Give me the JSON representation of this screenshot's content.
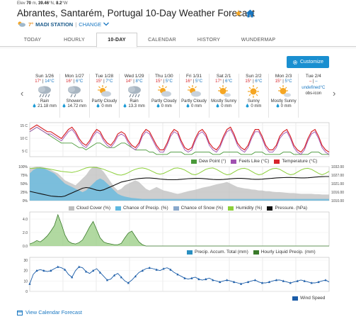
{
  "header": {
    "elev_label": "Elev",
    "elev_value": "70",
    "elev_unit": "m,",
    "lat": "39.46",
    "lat_unit": "°N,",
    "lon": "8.2",
    "lon_unit": "°W",
    "title": "Abrantes, Santarém, Portugal 10-Day Weather Forecast",
    "temp": "7°",
    "station": "MADI STATION",
    "separator": "|",
    "change": "CHANGE"
  },
  "tabs": [
    {
      "label": "TODAY"
    },
    {
      "label": "HOURLY"
    },
    {
      "label": "10-DAY"
    },
    {
      "label": "CALENDAR"
    },
    {
      "label": "HISTORY"
    },
    {
      "label": "WUNDERMAP"
    }
  ],
  "customize_label": "Customize",
  "days": [
    {
      "name": "Sun 1/26",
      "hi": "17°",
      "lo": "14°C",
      "icon": "rain-icon",
      "cond": "Rain",
      "precip": "21.18 mm"
    },
    {
      "name": "Mon 1/27",
      "hi": "16°",
      "lo": "6°C",
      "icon": "showers-icon",
      "cond": "Showers",
      "precip": "14.72 mm"
    },
    {
      "name": "Tue 1/28",
      "hi": "15°",
      "lo": "7°C",
      "icon": "partly-cloudy-icon",
      "cond": "Partly Cloudy",
      "precip": "0 mm"
    },
    {
      "name": "Wed 1/29",
      "hi": "14°",
      "lo": "8°C",
      "icon": "rain-icon",
      "cond": "Rain",
      "precip": "13.3 mm"
    },
    {
      "name": "Thu 1/30",
      "hi": "15°",
      "lo": "5°C",
      "icon": "partly-cloudy-icon",
      "cond": "Partly Cloudy",
      "precip": "0 mm"
    },
    {
      "name": "Fri 1/31",
      "hi": "16°",
      "lo": "5°C",
      "icon": "partly-cloudy-icon",
      "cond": "Partly Cloudy",
      "precip": "0 mm"
    },
    {
      "name": "Sat 2/1",
      "hi": "17°",
      "lo": "6°C",
      "icon": "mostly-sunny-icon",
      "cond": "Mostly Sunny",
      "precip": "0 mm"
    },
    {
      "name": "Sun 2/2",
      "hi": "15°",
      "lo": "6°C",
      "icon": "sunny-icon",
      "cond": "Sunny",
      "precip": "0 mm"
    },
    {
      "name": "Mon 2/3",
      "hi": "15°",
      "lo": "5°C",
      "icon": "mostly-sunny-icon",
      "cond": "Mostly Sunny",
      "precip": "0 mm"
    },
    {
      "name": "Tue 2/4",
      "hi": "–",
      "lo": "–",
      "icon": "",
      "cond": "undefined°C",
      "precip": "obs-icon"
    }
  ],
  "chart_data": [
    {
      "type": "line",
      "name": "temperature",
      "y_ticks": [
        "15 C",
        "10 C",
        "5 C"
      ],
      "ylim": [
        3,
        18
      ],
      "series": [
        {
          "name": "Temperature (°C)",
          "color": "#d7262c",
          "values": [
            15,
            16,
            17,
            16,
            15,
            14,
            14,
            13,
            12,
            11,
            13,
            15,
            16,
            14,
            11,
            9,
            8,
            10,
            13,
            15,
            14,
            11,
            9,
            8,
            10,
            13,
            14,
            13,
            10,
            8,
            7,
            9,
            13,
            15,
            14,
            11,
            8,
            6,
            6,
            9,
            13,
            15,
            14,
            10,
            7,
            6,
            7,
            11,
            14,
            15,
            13,
            9,
            7,
            6,
            8,
            12,
            15,
            16,
            13,
            9,
            7,
            6,
            8,
            12,
            15,
            15,
            12,
            8,
            6,
            6,
            8,
            12,
            14,
            15,
            12,
            8,
            6,
            5,
            7,
            11,
            14,
            15,
            12,
            8,
            6,
            5
          ]
        },
        {
          "name": "Feels Like (°C)",
          "color": "#a050b0",
          "values": [
            14,
            15,
            16,
            15,
            14,
            13,
            13,
            12,
            11,
            10,
            12,
            14,
            15,
            13,
            10,
            8,
            7,
            9,
            12,
            14,
            13,
            10,
            8,
            7,
            9,
            12,
            13,
            12,
            9,
            7,
            6,
            8,
            12,
            14,
            13,
            10,
            7,
            5,
            5,
            8,
            12,
            14,
            13,
            9,
            6,
            5,
            6,
            10,
            13,
            14,
            12,
            8,
            6,
            5,
            7,
            11,
            14,
            15,
            12,
            8,
            6,
            5,
            7,
            11,
            14,
            14,
            11,
            7,
            5,
            5,
            7,
            11,
            13,
            14,
            11,
            7,
            5,
            4,
            6,
            10,
            13,
            14,
            11,
            7,
            5,
            4
          ]
        },
        {
          "name": "Dew Point (°)",
          "color": "#4a9a3a",
          "values": [
            14,
            15,
            16,
            15,
            14,
            13,
            12,
            11,
            10,
            9,
            9,
            9,
            9,
            8,
            7,
            7,
            6,
            7,
            8,
            9,
            9,
            8,
            7,
            7,
            7,
            8,
            9,
            9,
            8,
            7,
            6,
            6,
            6,
            6,
            5,
            5,
            4,
            4,
            4,
            4,
            5,
            5,
            5,
            5,
            4,
            4,
            4,
            5,
            5,
            5,
            5,
            5,
            4,
            4,
            4,
            5,
            5,
            5,
            5,
            5,
            4,
            4,
            4,
            4,
            5,
            5,
            5,
            4,
            4,
            4,
            4,
            4,
            5,
            5,
            5,
            4,
            4,
            4,
            4,
            4,
            5,
            5,
            5,
            4,
            4,
            4
          ]
        }
      ]
    },
    {
      "type": "area",
      "name": "atmosphere",
      "y_ticks": [
        "100%",
        "75%",
        "50%",
        "25%",
        "0%"
      ],
      "y2_ticks": [
        "1032.00",
        "1027.00",
        "1021.00",
        "1016.00",
        "1010.00"
      ],
      "ylim": [
        0,
        100
      ],
      "y2lim": [
        1010,
        1032
      ],
      "series": [
        {
          "name": "Cloud Cover (%)",
          "color": "#bdbdbd",
          "values": [
            95,
            98,
            100,
            100,
            98,
            95,
            90,
            85,
            80,
            70,
            60,
            55,
            50,
            45,
            55,
            65,
            75,
            90,
            100,
            100,
            95,
            85,
            70,
            55,
            40,
            30,
            35,
            45,
            50,
            55,
            60,
            55,
            45,
            35,
            30,
            35,
            40,
            35,
            30,
            28,
            25,
            22,
            20,
            22,
            25,
            28,
            30,
            32,
            35,
            38,
            40,
            42,
            45,
            48,
            50,
            52,
            55,
            50,
            45,
            40,
            38,
            36,
            35,
            33,
            32,
            30,
            30,
            28,
            28,
            26,
            25,
            25,
            24,
            23,
            22,
            22,
            21,
            20,
            20,
            20,
            20,
            19,
            19,
            18,
            18,
            18
          ]
        },
        {
          "name": "Chance of Precip. (%)",
          "color": "#5fb8e0",
          "values": [
            80,
            90,
            95,
            98,
            95,
            90,
            85,
            80,
            70,
            60,
            50,
            45,
            40,
            35,
            30,
            25,
            30,
            40,
            50,
            60,
            65,
            60,
            50,
            40,
            30,
            20,
            15,
            12,
            10,
            8,
            7,
            6,
            5,
            5,
            5,
            5,
            5,
            5,
            5,
            5,
            5,
            5,
            5,
            5,
            5,
            5,
            5,
            5,
            5,
            5,
            5,
            5,
            5,
            5,
            5,
            5,
            5,
            5,
            5,
            5,
            5,
            5,
            5,
            5,
            5,
            5,
            5,
            5,
            5,
            5,
            5,
            5,
            5,
            5,
            5,
            5,
            5,
            5,
            5,
            5,
            5,
            5,
            5,
            5,
            5,
            5
          ]
        },
        {
          "name": "Chance of Snow (%)",
          "color": "#8aa8cc",
          "values": []
        },
        {
          "name": "Humidity (%)",
          "color": "#8ccf3a",
          "values": [
            95,
            95,
            96,
            96,
            95,
            94,
            92,
            90,
            88,
            86,
            85,
            84,
            83,
            85,
            88,
            92,
            96,
            98,
            98,
            97,
            95,
            92,
            88,
            84,
            80,
            76,
            75,
            78,
            82,
            88,
            92,
            95,
            96,
            94,
            90,
            85,
            80,
            78,
            80,
            85,
            90,
            95,
            96,
            94,
            90,
            84,
            78,
            76,
            80,
            86,
            92,
            95,
            96,
            92,
            86,
            80,
            76,
            78,
            84,
            90,
            94,
            95,
            92,
            86,
            80,
            76,
            78,
            84,
            90,
            94,
            95,
            92,
            86,
            80,
            76,
            78,
            84,
            90,
            94,
            95,
            92,
            86,
            80,
            76,
            80,
            86
          ]
        },
        {
          "name": "Pressure. (hPa)",
          "color": "#111111",
          "values": [
            1016,
            1015.5,
            1015,
            1014.5,
            1014,
            1013.5,
            1013,
            1012.8,
            1012.6,
            1012.5,
            1013,
            1014,
            1015,
            1016,
            1017,
            1018,
            1018.5,
            1018.2,
            1017.5,
            1016.8,
            1016.5,
            1017,
            1018,
            1019,
            1020,
            1021,
            1022,
            1022.5,
            1023,
            1023.5,
            1024,
            1024.3,
            1024.5,
            1024.6,
            1024.6,
            1024.5,
            1024.3,
            1024,
            1023.8,
            1023.6,
            1023.5,
            1023.5,
            1023.6,
            1023.8,
            1024,
            1024.2,
            1024.3,
            1024.4,
            1024.4,
            1024.3,
            1024.1,
            1023.9,
            1023.7,
            1023.6,
            1023.6,
            1023.7,
            1023.9,
            1024.1,
            1024.3,
            1024.4,
            1024.4,
            1024.3,
            1024.1,
            1023.9,
            1023.8,
            1023.8,
            1023.9,
            1024.1,
            1024.3,
            1024.5,
            1024.7,
            1024.8,
            1024.9,
            1025,
            1025,
            1024.9,
            1024.8,
            1024.7,
            1024.7,
            1024.8,
            1025,
            1025.2,
            1025.4,
            1025.5,
            1025.6,
            1025.6
          ]
        }
      ]
    },
    {
      "type": "area",
      "name": "precipitation",
      "y_ticks": [
        "4.0",
        "2.0",
        "0.0"
      ],
      "ylim": [
        0,
        5
      ],
      "series": [
        {
          "name": "Precip. Accum. Total (mm)",
          "color": "#2a8fc0",
          "values": []
        },
        {
          "name": "Hourly Liquid Precip. (mm)",
          "color": "#3a7a2a",
          "values": [
            0.3,
            0.5,
            0.8,
            0.6,
            1.0,
            1.5,
            2.2,
            3.0,
            4.6,
            3.2,
            1.6,
            0.7,
            0.4,
            0.3,
            0.5,
            0.9,
            1.8,
            2.8,
            3.6,
            2.4,
            1.2,
            0.6,
            0.4,
            0.3,
            0.2,
            0.2,
            0.4,
            1.2,
            1.9,
            2.2,
            1.4,
            0.6,
            0.2,
            0,
            0,
            0,
            0,
            0,
            0,
            0,
            0,
            0,
            0,
            0,
            0,
            0,
            0,
            0,
            0,
            0,
            0,
            0,
            0,
            0,
            0,
            0,
            0,
            0,
            0,
            0,
            0,
            0,
            0,
            0,
            0,
            0,
            0,
            0,
            0,
            0,
            0,
            0,
            0,
            0,
            0,
            0,
            0,
            0,
            0,
            0,
            0,
            0,
            0,
            0,
            0,
            0
          ]
        }
      ]
    },
    {
      "type": "line",
      "name": "wind",
      "y_ticks": [
        "30",
        "20",
        "10",
        "0"
      ],
      "ylim": [
        0,
        36
      ],
      "series": [
        {
          "name": "Wind Speed",
          "color": "#1a5ca8",
          "values": [
            8,
            18,
            22,
            23,
            22,
            21,
            22,
            24,
            26,
            25,
            23,
            18,
            15,
            22,
            26,
            25,
            21,
            19,
            22,
            24,
            20,
            16,
            12,
            13,
            17,
            19,
            15,
            11,
            9,
            12,
            16,
            20,
            22,
            24,
            25,
            24,
            23,
            22,
            24,
            25,
            23,
            20,
            18,
            16,
            14,
            13,
            14,
            15,
            13,
            12,
            13,
            14,
            12,
            11,
            10,
            11,
            12,
            11,
            10,
            9,
            8,
            9,
            10,
            11,
            12,
            10,
            9,
            9,
            10,
            11,
            12,
            12,
            11,
            10,
            9,
            10,
            11,
            12,
            11,
            10,
            9,
            9,
            10,
            11,
            12,
            10
          ]
        }
      ]
    }
  ],
  "footer": {
    "link": "View Calendar Forecast"
  }
}
